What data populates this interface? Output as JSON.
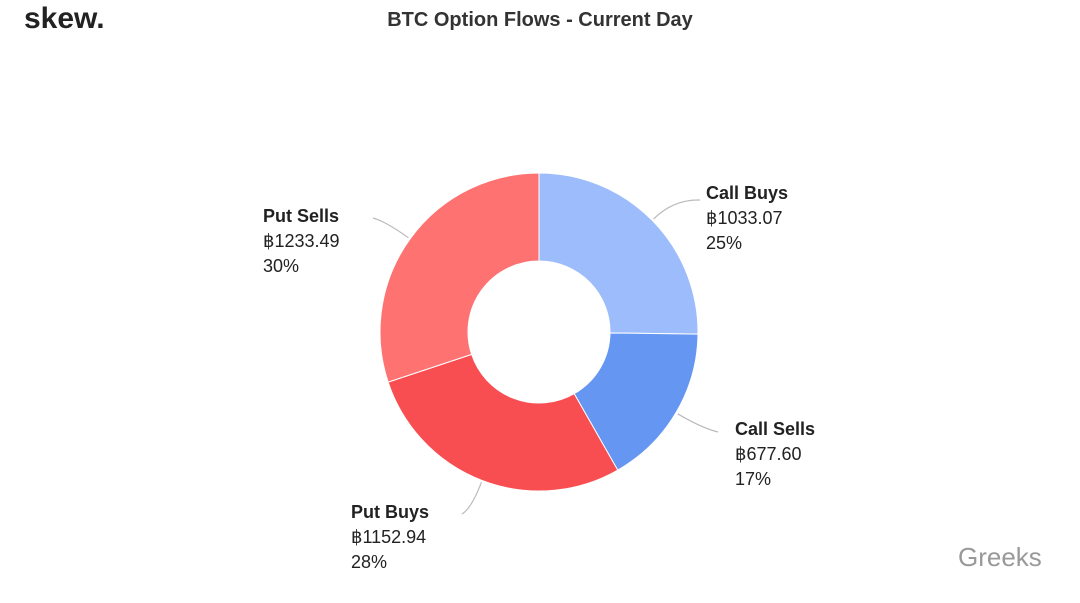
{
  "brand": "skew.",
  "watermark": "Greeks",
  "chart_data": {
    "type": "pie",
    "title": "BTC Option Flows - Current Day",
    "categories": [
      "Call Buys",
      "Call Sells",
      "Put Buys",
      "Put Sells"
    ],
    "values": [
      1033.07,
      677.6,
      1152.94,
      1233.49
    ],
    "value_labels": [
      "฿1033.07",
      "฿677.60",
      "฿1152.94",
      "฿1233.49"
    ],
    "percents": [
      25,
      17,
      28,
      30
    ],
    "percent_labels": [
      "25%",
      "17%",
      "28%",
      "30%"
    ],
    "colors": [
      "#9dbcfc",
      "#6496f2",
      "#f84e51",
      "#fe7272"
    ]
  }
}
